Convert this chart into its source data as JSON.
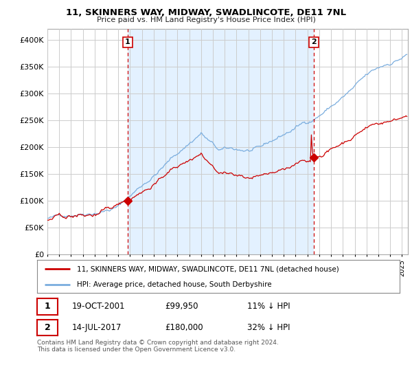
{
  "title": "11, SKINNERS WAY, MIDWAY, SWADLINCOTE, DE11 7NL",
  "subtitle": "Price paid vs. HM Land Registry's House Price Index (HPI)",
  "legend_line1": "11, SKINNERS WAY, MIDWAY, SWADLINCOTE, DE11 7NL (detached house)",
  "legend_line2": "HPI: Average price, detached house, South Derbyshire",
  "sale1_label": "1",
  "sale1_date": "19-OCT-2001",
  "sale1_price": "£99,950",
  "sale1_hpi": "11% ↓ HPI",
  "sale1_year": 2001.8,
  "sale1_value": 99950,
  "sale2_label": "2",
  "sale2_date": "14-JUL-2017",
  "sale2_price": "£180,000",
  "sale2_hpi": "32% ↓ HPI",
  "sale2_year": 2017.54,
  "sale2_value": 180000,
  "footer": "Contains HM Land Registry data © Crown copyright and database right 2024.\nThis data is licensed under the Open Government Licence v3.0.",
  "hpi_color": "#7aadde",
  "price_color": "#cc0000",
  "vline_color": "#cc0000",
  "fill_color": "#ddeeff",
  "ylim_min": 0,
  "ylim_max": 420000,
  "xlim_min": 1995,
  "xlim_max": 2025.5,
  "background_color": "#ffffff",
  "grid_color": "#cccccc"
}
